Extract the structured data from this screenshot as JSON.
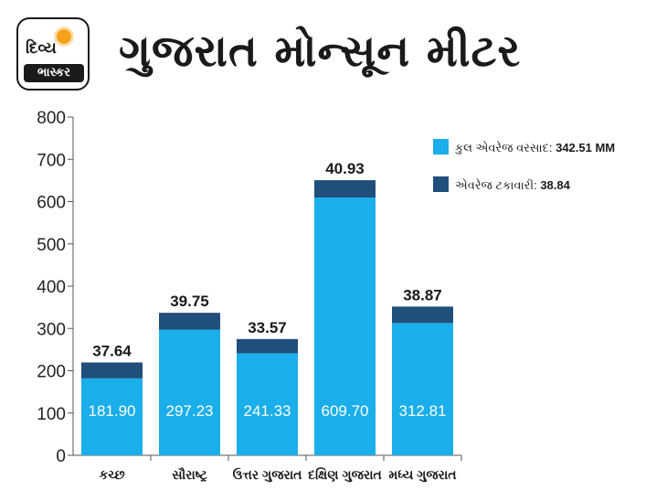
{
  "brand": {
    "logo_line1": "દિવ્ય",
    "logo_line2": "ભાસ્કર"
  },
  "title": "ગુજરાત મોન્સૂન મીટર",
  "colors": {
    "total": "#1aaeea",
    "percent": "#1f4f7a",
    "axis": "#555555"
  },
  "chart_data": {
    "type": "bar",
    "stacked": true,
    "categories": [
      "કચ્છ",
      "સૌરાષ્ટ્ર",
      "ઉત્તર ગુજરાત",
      "દક્ષિણ ગુજરાત",
      "મધ્ય ગુજરાત"
    ],
    "series": [
      {
        "name": "કુલ એવરેજ વરસાદ",
        "values": [
          181.9,
          297.23,
          241.33,
          609.7,
          312.81
        ],
        "labels": [
          "181.90",
          "297.23",
          "241.33",
          "609.70",
          "312.81"
        ]
      },
      {
        "name": "એવરેજ ટકાવારી",
        "values": [
          37.64,
          39.75,
          33.57,
          40.93,
          38.87
        ],
        "labels": [
          "37.64",
          "39.75",
          "33.57",
          "40.93",
          "38.87"
        ]
      }
    ],
    "legend": [
      {
        "label": "કુલ એવરેજ વરસાદ:",
        "value": "342.51 MM"
      },
      {
        "label": "એવરેજ ટકાવારી:",
        "value": "38.84"
      }
    ],
    "legend_position": "top-right",
    "yticks": [
      0,
      100,
      200,
      300,
      400,
      500,
      600,
      700,
      800
    ],
    "ylim": [
      0,
      800
    ],
    "xlabel": "",
    "ylabel": "",
    "grid": false
  }
}
